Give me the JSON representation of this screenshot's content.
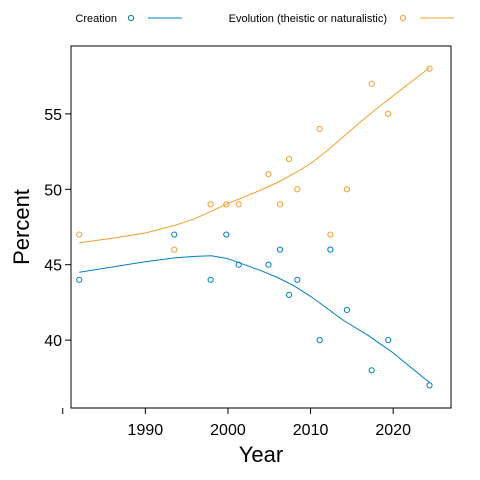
{
  "chart_data": {
    "type": "scatter",
    "xlabel": "Year",
    "ylabel": "Percent",
    "xlim": [
      1981,
      2027
    ],
    "ylim": [
      35.5,
      59.5
    ],
    "xticks": [
      1990,
      2000,
      2010,
      2020
    ],
    "xticks_minor": [
      1980
    ],
    "yticks": [
      40,
      45,
      50,
      55
    ],
    "legend_position": "top",
    "series": [
      {
        "name": "Creation",
        "color": "#0080C0",
        "marker": "open-circle",
        "points": [
          [
            1982,
            44
          ],
          [
            1993.5,
            47
          ],
          [
            1997.9,
            44
          ],
          [
            1999.8,
            47
          ],
          [
            2001.3,
            45
          ],
          [
            2004.9,
            45
          ],
          [
            2006.3,
            46
          ],
          [
            2007.4,
            43
          ],
          [
            2008.4,
            44
          ],
          [
            2011.1,
            40
          ],
          [
            2012.4,
            46
          ],
          [
            2014.4,
            42
          ],
          [
            2017.4,
            38
          ],
          [
            2019.4,
            40
          ],
          [
            2024.4,
            37
          ]
        ],
        "smooth": [
          [
            1982,
            44.5
          ],
          [
            1986,
            44.85
          ],
          [
            1990,
            45.2
          ],
          [
            1993.5,
            45.45
          ],
          [
            1996,
            45.55
          ],
          [
            1998,
            45.6
          ],
          [
            2000,
            45.4
          ],
          [
            2002,
            45.0
          ],
          [
            2004,
            44.6
          ],
          [
            2006,
            44.15
          ],
          [
            2008,
            43.6
          ],
          [
            2010,
            42.9
          ],
          [
            2012,
            42.1
          ],
          [
            2014,
            41.3
          ],
          [
            2017,
            40.3
          ],
          [
            2020,
            39.15
          ],
          [
            2022,
            38.25
          ],
          [
            2024.4,
            37.2
          ]
        ]
      },
      {
        "name": "Evolution (theistic or naturalistic)",
        "color": "#F0A030",
        "marker": "open-circle",
        "points": [
          [
            1982,
            47
          ],
          [
            1993.5,
            46
          ],
          [
            1997.9,
            49
          ],
          [
            1999.8,
            49
          ],
          [
            2001.3,
            49
          ],
          [
            2004.9,
            51
          ],
          [
            2006.3,
            49
          ],
          [
            2007.4,
            52
          ],
          [
            2008.4,
            50
          ],
          [
            2011.1,
            54
          ],
          [
            2012.4,
            47
          ],
          [
            2014.4,
            50
          ],
          [
            2017.4,
            57
          ],
          [
            2019.4,
            55
          ],
          [
            2024.4,
            58
          ]
        ],
        "smooth": [
          [
            1982,
            46.45
          ],
          [
            1986,
            46.75
          ],
          [
            1990,
            47.1
          ],
          [
            1993.5,
            47.6
          ],
          [
            1996,
            48.05
          ],
          [
            1998,
            48.55
          ],
          [
            2000,
            49.05
          ],
          [
            2002,
            49.5
          ],
          [
            2004,
            49.95
          ],
          [
            2006,
            50.45
          ],
          [
            2008,
            51.05
          ],
          [
            2010,
            51.7
          ],
          [
            2012,
            52.55
          ],
          [
            2014,
            53.5
          ],
          [
            2016,
            54.45
          ],
          [
            2018,
            55.35
          ],
          [
            2020,
            56.2
          ],
          [
            2022,
            57.05
          ],
          [
            2024.4,
            58.05
          ]
        ]
      }
    ]
  }
}
